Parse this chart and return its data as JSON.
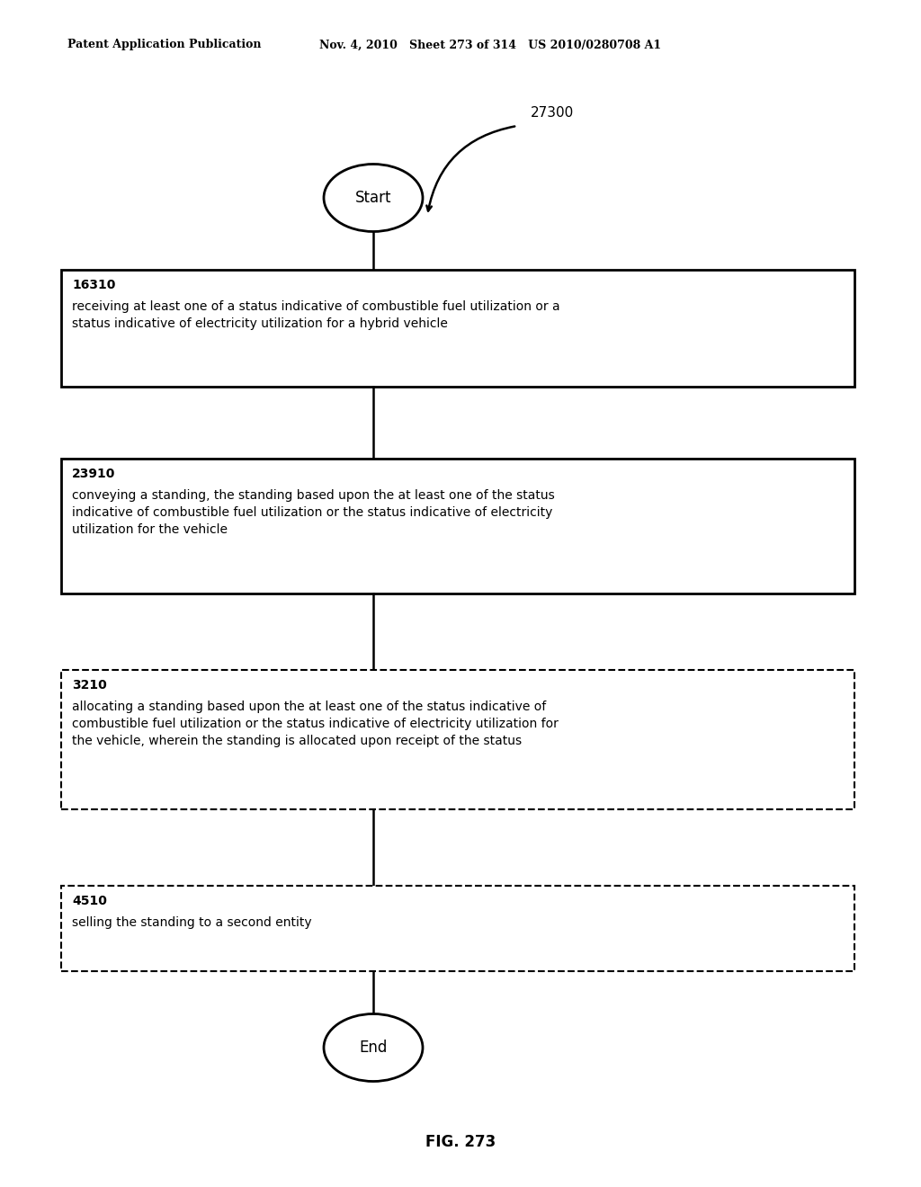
{
  "header_left": "Patent Application Publication",
  "header_middle": "Nov. 4, 2010   Sheet 273 of 314   US 2010/0280708 A1",
  "figure_label": "FIG. 273",
  "diagram_label": "27300",
  "start_label": "Start",
  "end_label": "End",
  "boxes": [
    {
      "id": "16310",
      "label": "16310",
      "text": "receiving at least one of a status indicative of combustible fuel utilization or a\nstatus indicative of electricity utilization for a hybrid vehicle",
      "style": "solid"
    },
    {
      "id": "23910",
      "label": "23910",
      "text": "conveying a standing, the standing based upon the at least one of the status\nindicative of combustible fuel utilization or the status indicative of electricity\nutilization for the vehicle",
      "style": "solid"
    },
    {
      "id": "3210",
      "label": "3210",
      "text": "allocating a standing based upon the at least one of the status indicative of\ncombustible fuel utilization or the status indicative of electricity utilization for\nthe vehicle, wherein the standing is allocated upon receipt of the status",
      "style": "dashed"
    },
    {
      "id": "4510",
      "label": "4510",
      "text": "selling the standing to a second entity",
      "style": "dashed"
    }
  ],
  "background_color": "#ffffff",
  "text_color": "#000000"
}
